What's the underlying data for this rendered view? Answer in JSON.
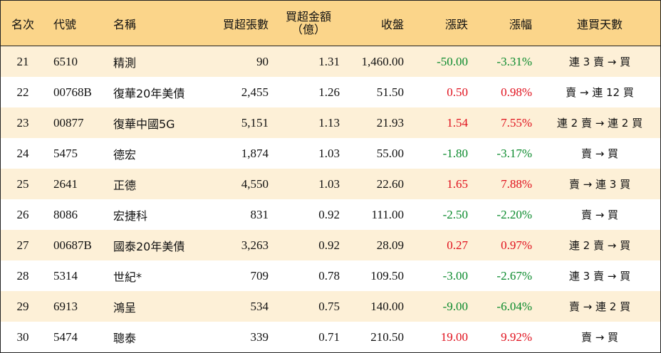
{
  "header": {
    "rank": "名次",
    "code": "代號",
    "name": "名稱",
    "net_lots": "買超張數",
    "net_amount_line1": "買超金額",
    "net_amount_line2": "（億）",
    "close": "收盤",
    "change": "漲跌",
    "change_pct": "漲幅",
    "streak": "連買天數"
  },
  "colors": {
    "header_bg": "#fbd58a",
    "band_bg": "#fdf0d7",
    "up": "#e0101c",
    "down": "#0a8a2c"
  },
  "rows": [
    {
      "rank": "21",
      "code": "6510",
      "name": "精測",
      "lots": "90",
      "amount": "1.31",
      "close": "1,460.00",
      "change": "-50.00",
      "pct": "-3.31%",
      "streak": "連 3 賣 → 買",
      "dir": "down"
    },
    {
      "rank": "22",
      "code": "00768B",
      "name": "復華20年美債",
      "lots": "2,455",
      "amount": "1.26",
      "close": "51.50",
      "change": "0.50",
      "pct": "0.98%",
      "streak": "賣 → 連 12 買",
      "dir": "up"
    },
    {
      "rank": "23",
      "code": "00877",
      "name": "復華中國5G",
      "lots": "5,151",
      "amount": "1.13",
      "close": "21.93",
      "change": "1.54",
      "pct": "7.55%",
      "streak": "連 2 賣 → 連 2 買",
      "dir": "up"
    },
    {
      "rank": "24",
      "code": "5475",
      "name": "德宏",
      "lots": "1,874",
      "amount": "1.03",
      "close": "55.00",
      "change": "-1.80",
      "pct": "-3.17%",
      "streak": "賣 → 買",
      "dir": "down"
    },
    {
      "rank": "25",
      "code": "2641",
      "name": "正德",
      "lots": "4,550",
      "amount": "1.03",
      "close": "22.60",
      "change": "1.65",
      "pct": "7.88%",
      "streak": "賣 → 連 3 買",
      "dir": "up"
    },
    {
      "rank": "26",
      "code": "8086",
      "name": "宏捷科",
      "lots": "831",
      "amount": "0.92",
      "close": "111.00",
      "change": "-2.50",
      "pct": "-2.20%",
      "streak": "賣 → 買",
      "dir": "down"
    },
    {
      "rank": "27",
      "code": "00687B",
      "name": "國泰20年美債",
      "lots": "3,263",
      "amount": "0.92",
      "close": "28.09",
      "change": "0.27",
      "pct": "0.97%",
      "streak": "連 2 賣 → 買",
      "dir": "up"
    },
    {
      "rank": "28",
      "code": "5314",
      "name": "世紀*",
      "lots": "709",
      "amount": "0.78",
      "close": "109.50",
      "change": "-3.00",
      "pct": "-2.67%",
      "streak": "連 3 賣 → 買",
      "dir": "down"
    },
    {
      "rank": "29",
      "code": "6913",
      "name": "鴻呈",
      "lots": "534",
      "amount": "0.75",
      "close": "140.00",
      "change": "-9.00",
      "pct": "-6.04%",
      "streak": "賣 → 連 2 買",
      "dir": "down"
    },
    {
      "rank": "30",
      "code": "5474",
      "name": "聰泰",
      "lots": "339",
      "amount": "0.71",
      "close": "210.50",
      "change": "19.00",
      "pct": "9.92%",
      "streak": "賣 → 買",
      "dir": "up"
    }
  ]
}
